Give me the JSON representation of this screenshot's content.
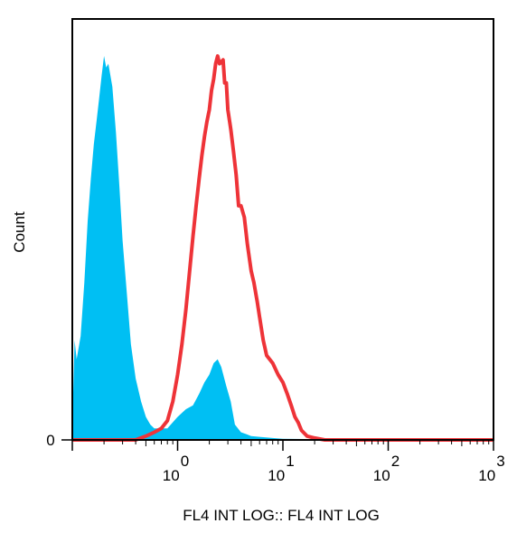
{
  "chart_data": {
    "type": "area",
    "title": "",
    "xlabel": "FL4 INT LOG:: FL4 INT LOG",
    "ylabel": "Count",
    "x_scale": "log",
    "xlim": [
      0.1,
      1000
    ],
    "ylim": [
      0,
      1
    ],
    "grid": false,
    "x_ticks": [
      {
        "value": 1,
        "base": "10",
        "exp": "0"
      },
      {
        "value": 10,
        "base": "10",
        "exp": "1"
      },
      {
        "value": 100,
        "base": "10",
        "exp": "2"
      },
      {
        "value": 1000,
        "base": "10",
        "exp": "3"
      }
    ],
    "y_ticks": [
      {
        "value": 0,
        "label": "0"
      }
    ],
    "series": [
      {
        "style": "filled",
        "color": "#00BFF3",
        "x": [
          0.1,
          0.105,
          0.11,
          0.12,
          0.13,
          0.14,
          0.15,
          0.16,
          0.17,
          0.18,
          0.19,
          0.2,
          0.21,
          0.22,
          0.24,
          0.26,
          0.28,
          0.3,
          0.33,
          0.36,
          0.4,
          0.45,
          0.5,
          0.55,
          0.6,
          0.7,
          0.8,
          1.0,
          1.2,
          1.4,
          1.6,
          1.8,
          2.0,
          2.2,
          2.4,
          2.6,
          2.9,
          3.2,
          3.5,
          4.0,
          4.5,
          5.0,
          6.0,
          8.0,
          10.0,
          20.0,
          100.0,
          1000.0
        ],
        "y": [
          0.03,
          0.26,
          0.21,
          0.27,
          0.41,
          0.57,
          0.68,
          0.77,
          0.83,
          0.89,
          0.95,
          1.0,
          0.97,
          0.98,
          0.92,
          0.8,
          0.66,
          0.52,
          0.38,
          0.25,
          0.16,
          0.1,
          0.06,
          0.04,
          0.03,
          0.03,
          0.03,
          0.06,
          0.08,
          0.09,
          0.12,
          0.15,
          0.17,
          0.2,
          0.21,
          0.19,
          0.14,
          0.1,
          0.04,
          0.02,
          0.015,
          0.01,
          0.008,
          0.005,
          0.003,
          0.002,
          0.0,
          0.0
        ]
      },
      {
        "style": "line",
        "color": "#EE3338",
        "x": [
          0.1,
          0.3,
          0.4,
          0.5,
          0.55,
          0.6,
          0.7,
          0.8,
          0.9,
          1.0,
          1.1,
          1.2,
          1.3,
          1.4,
          1.5,
          1.6,
          1.7,
          1.8,
          1.9,
          2.0,
          2.1,
          2.2,
          2.3,
          2.4,
          2.5,
          2.7,
          2.8,
          2.9,
          3.0,
          3.2,
          3.4,
          3.6,
          3.8,
          4.0,
          4.3,
          4.6,
          5.0,
          5.3,
          5.7,
          6.0,
          6.5,
          7.0,
          8.0,
          9.0,
          10.0,
          11.0,
          12.0,
          13.0,
          14.0,
          15.0,
          17.0,
          20.0,
          25.0,
          30.0,
          100.0,
          1000.0
        ],
        "y": [
          0.0,
          0.0,
          0.0,
          0.01,
          0.015,
          0.02,
          0.03,
          0.05,
          0.1,
          0.17,
          0.25,
          0.34,
          0.44,
          0.53,
          0.61,
          0.68,
          0.74,
          0.79,
          0.83,
          0.86,
          0.91,
          0.94,
          0.98,
          1.0,
          0.98,
          0.99,
          0.93,
          0.93,
          0.86,
          0.81,
          0.75,
          0.69,
          0.61,
          0.61,
          0.58,
          0.51,
          0.44,
          0.41,
          0.36,
          0.32,
          0.26,
          0.22,
          0.2,
          0.17,
          0.15,
          0.12,
          0.09,
          0.06,
          0.045,
          0.025,
          0.01,
          0.005,
          0.0,
          0.0,
          0.0,
          0.0
        ]
      }
    ]
  }
}
